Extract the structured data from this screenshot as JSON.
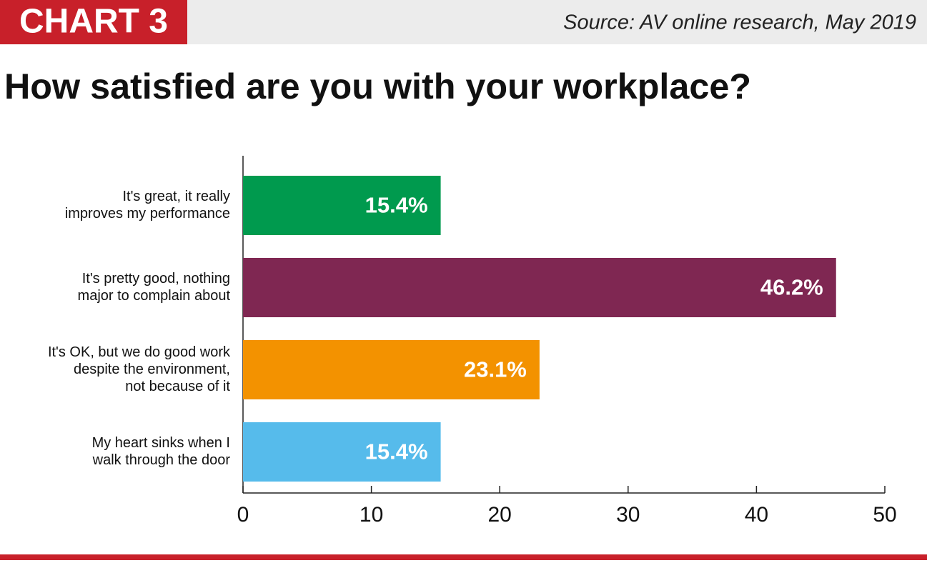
{
  "chart_data": {
    "type": "bar",
    "orientation": "horizontal",
    "chart_label": "CHART 3",
    "source": "Source: AV online research, May 2019",
    "title": "How satisfied are you with your workplace?",
    "categories": [
      [
        "It's great, it really",
        "improves my performance"
      ],
      [
        "It's pretty good, nothing",
        "major to complain about"
      ],
      [
        "It's OK, but we do good work",
        "despite the environment,",
        "not because of it"
      ],
      [
        "My heart sinks when I",
        "walk through the door"
      ]
    ],
    "values": [
      15.4,
      46.2,
      23.1,
      15.4
    ],
    "value_labels": [
      "15.4%",
      "46.2%",
      "23.1%",
      "15.4%"
    ],
    "colors": [
      "#009a4e",
      "#7f2752",
      "#f39200",
      "#56bbeb"
    ],
    "xlim": [
      0,
      50
    ],
    "xticks": [
      0,
      10,
      20,
      30,
      40,
      50
    ],
    "grid": false
  }
}
